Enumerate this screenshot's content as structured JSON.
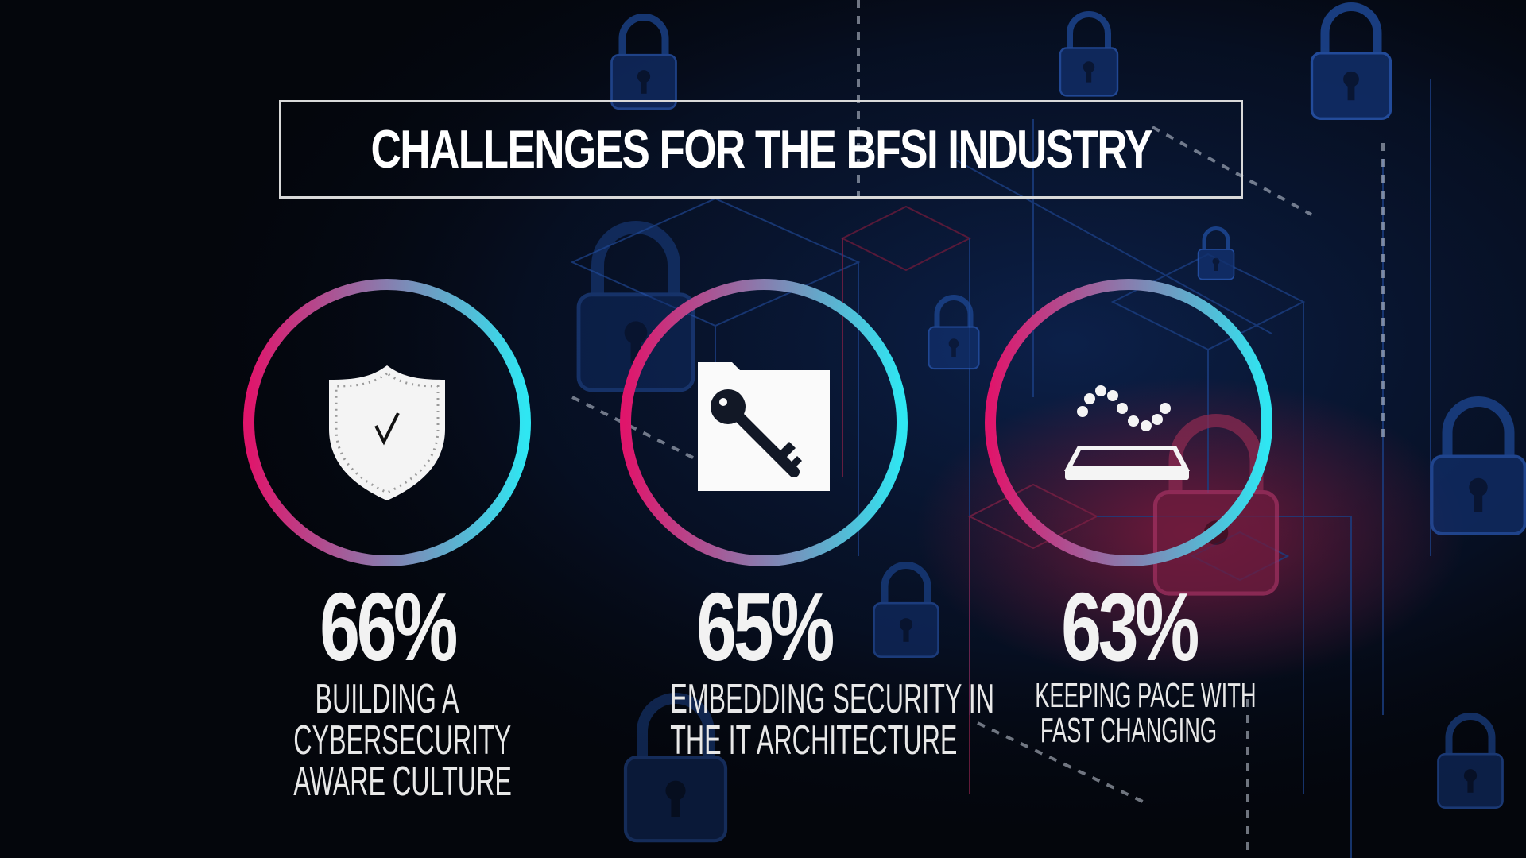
{
  "title": "CHALLENGES FOR THE BFSI INDUSTRY",
  "colors": {
    "ring_start": "#e0156b",
    "ring_end": "#2fe6f2",
    "background": "#04060c",
    "text": "#ffffff"
  },
  "stats": [
    {
      "value": "66%",
      "icon": "shield-check-icon",
      "label_lines": [
        "BUILDING A",
        "CYBERSECURITY",
        "AWARE CULTURE"
      ]
    },
    {
      "value": "65%",
      "icon": "key-card-icon",
      "label_lines": [
        "EMBEDDING SECURITY IN",
        "THE IT ARCHITECTURE"
      ]
    },
    {
      "value": "63%",
      "icon": "tablet-wave-icon",
      "label_lines": [
        "KEEPING PACE WITH",
        "FAST CHANGING"
      ]
    }
  ]
}
